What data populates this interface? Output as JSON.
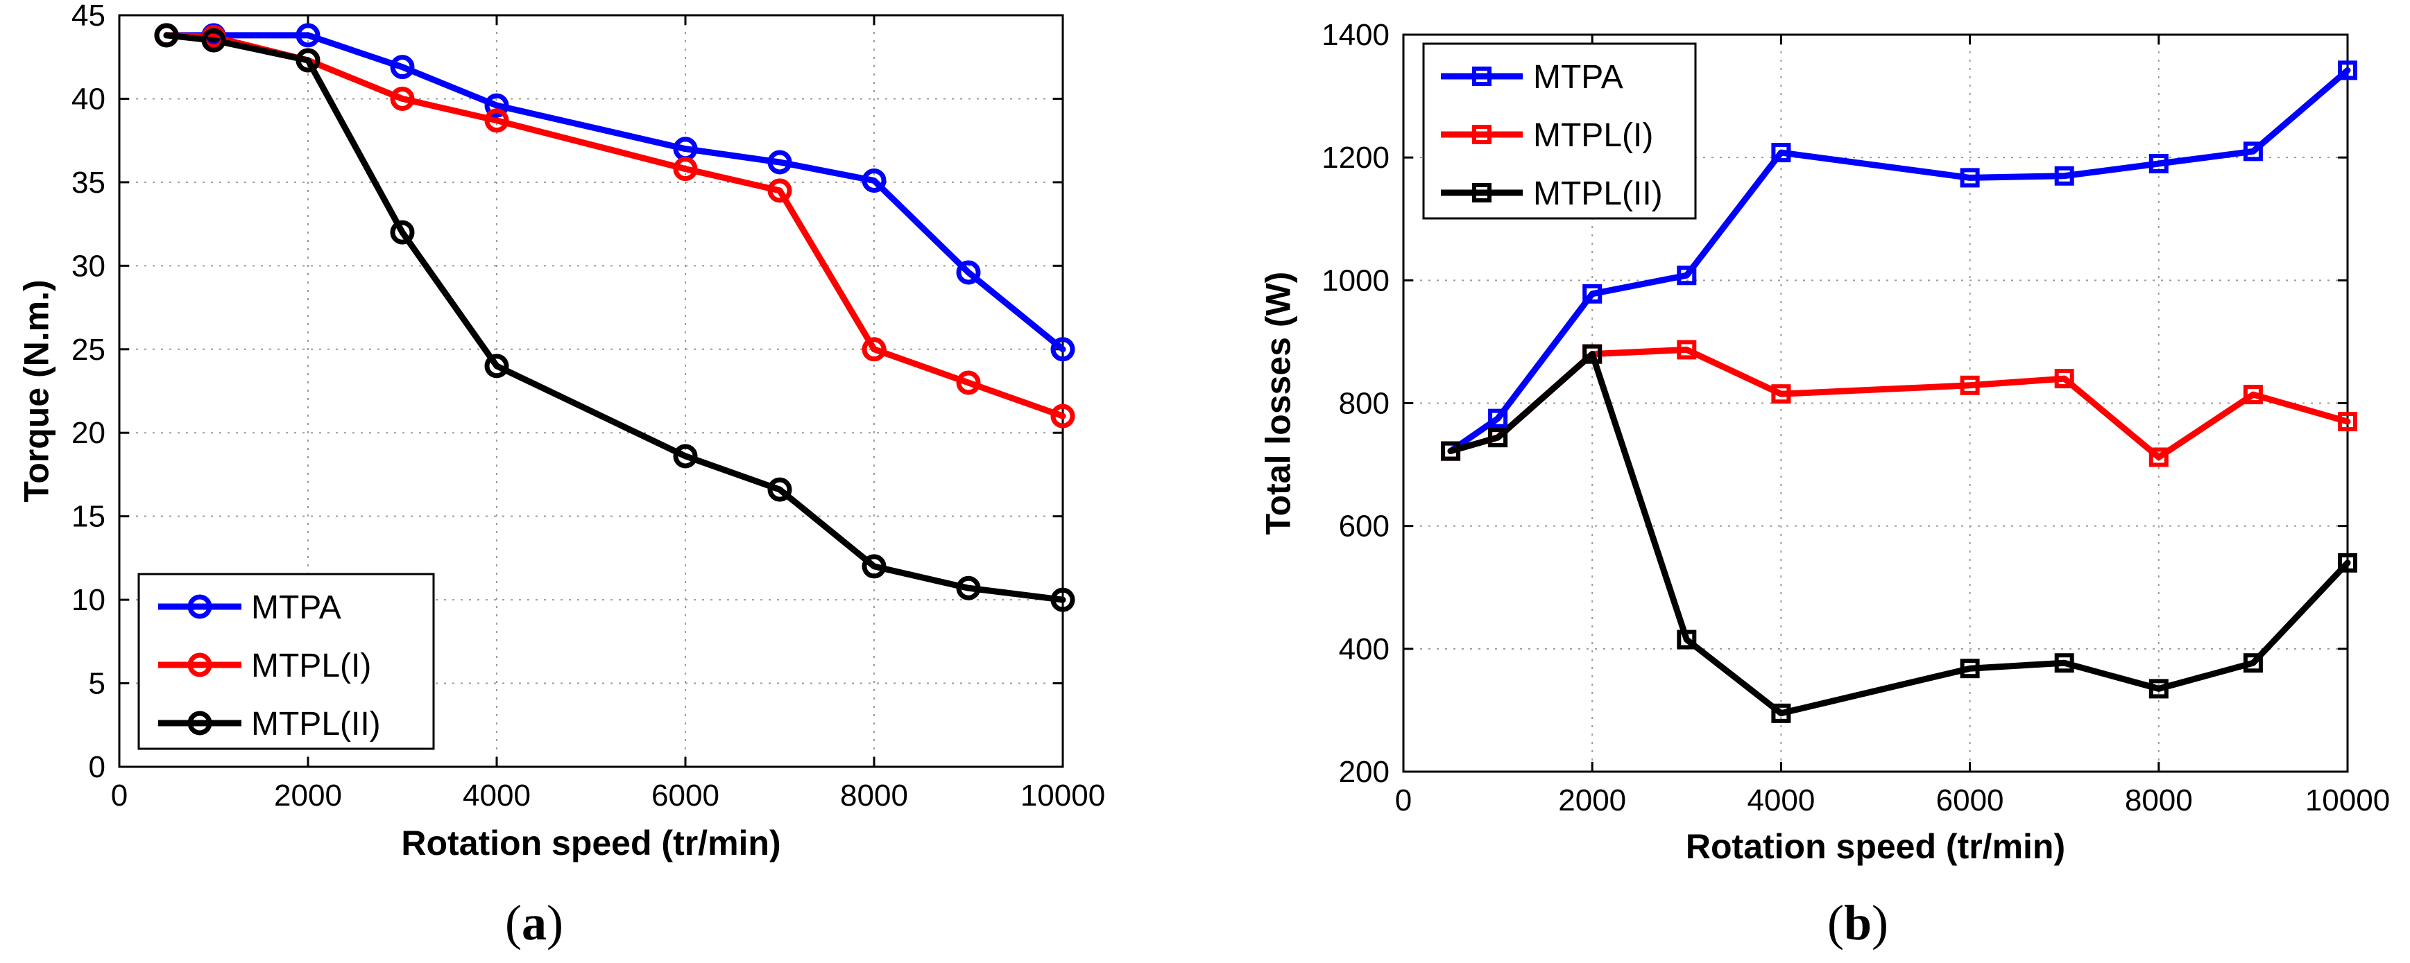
{
  "chart_data": [
    {
      "type": "line",
      "panel": "a",
      "caption": "(a)",
      "caption_letter": "a",
      "xlabel": "Rotation speed (tr/min)",
      "ylabel": "Torque (N.m.)",
      "xlim": [
        0,
        10000
      ],
      "ylim": [
        0,
        45
      ],
      "xticks": [
        0,
        2000,
        4000,
        6000,
        8000,
        10000
      ],
      "yticks": [
        0,
        5,
        10,
        15,
        20,
        25,
        30,
        35,
        40,
        45
      ],
      "grid": true,
      "legend_position": "bottom-left",
      "marker": "circle",
      "x": [
        500,
        1000,
        2000,
        3000,
        4000,
        6000,
        7000,
        8000,
        9000,
        10000
      ],
      "series": [
        {
          "name": "MTPA",
          "color": "#0000ff",
          "values": [
            43.8,
            43.8,
            43.8,
            41.9,
            39.6,
            37.0,
            36.2,
            35.1,
            29.6,
            25.0
          ]
        },
        {
          "name": "MTPL(I)",
          "color": "#ff0000",
          "values": [
            43.8,
            43.7,
            42.3,
            40.0,
            38.7,
            35.8,
            34.5,
            25.0,
            23.0,
            21.0
          ]
        },
        {
          "name": "MTPL(II)",
          "color": "#000000",
          "values": [
            43.8,
            43.5,
            42.3,
            32.0,
            24.0,
            18.6,
            16.6,
            12.0,
            10.7,
            10.0
          ]
        }
      ]
    },
    {
      "type": "line",
      "panel": "b",
      "caption": "(b)",
      "caption_letter": "b",
      "xlabel": "Rotation speed (tr/min)",
      "ylabel": "Total losses (W)",
      "xlim": [
        0,
        10000
      ],
      "ylim": [
        200,
        1400
      ],
      "xticks": [
        0,
        2000,
        4000,
        6000,
        8000,
        10000
      ],
      "yticks": [
        200,
        400,
        600,
        800,
        1000,
        1200,
        1400
      ],
      "grid": true,
      "legend_position": "top-left",
      "marker": "square",
      "x": [
        500,
        1000,
        2000,
        3000,
        4000,
        6000,
        7000,
        8000,
        9000,
        10000
      ],
      "series": [
        {
          "name": "MTPA",
          "color": "#0000ff",
          "values": [
            722,
            775,
            978,
            1008,
            1208,
            1167,
            1170,
            1190,
            1210,
            1342
          ]
        },
        {
          "name": "MTPL(I)",
          "color": "#ff0000",
          "values": [
            722,
            744,
            880,
            887,
            815,
            829,
            840,
            712,
            814,
            770
          ]
        },
        {
          "name": "MTPL(II)",
          "color": "#000000",
          "values": [
            722,
            744,
            880,
            415,
            295,
            368,
            377,
            335,
            377,
            540
          ]
        }
      ]
    }
  ]
}
